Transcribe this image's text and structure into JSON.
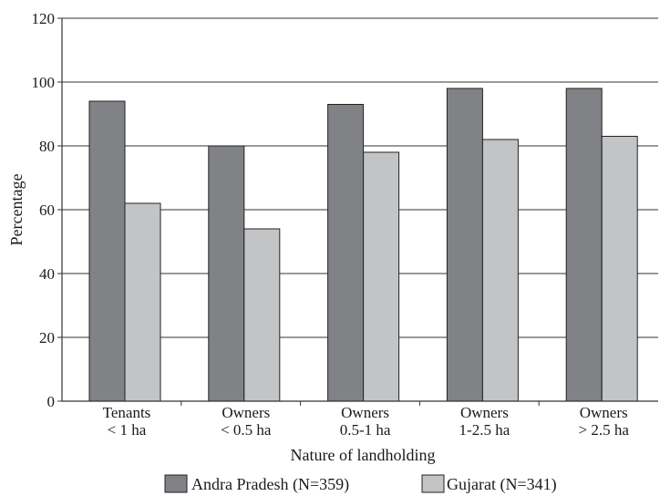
{
  "chart_data": {
    "type": "bar",
    "title": "",
    "xlabel": "Nature of landholding",
    "ylabel": "Percentage",
    "ylim": [
      0,
      120
    ],
    "yticks": [
      0,
      20,
      40,
      60,
      80,
      100,
      120
    ],
    "grid": true,
    "legend_position": "bottom",
    "categories": [
      [
        "Tenants",
        "< 1 ha"
      ],
      [
        "Owners",
        "< 0.5 ha"
      ],
      [
        "Owners",
        "0.5-1 ha"
      ],
      [
        "Owners",
        "1-2.5 ha"
      ],
      [
        "Owners",
        "> 2.5 ha"
      ]
    ],
    "series": [
      {
        "name": "Andra Pradesh (N=359)",
        "color": "#808285",
        "values": [
          94,
          80,
          93,
          98,
          98
        ]
      },
      {
        "name": "Gujarat (N=341)",
        "color": "#c3c4c6",
        "values": [
          62,
          54,
          78,
          82,
          83
        ]
      }
    ]
  }
}
